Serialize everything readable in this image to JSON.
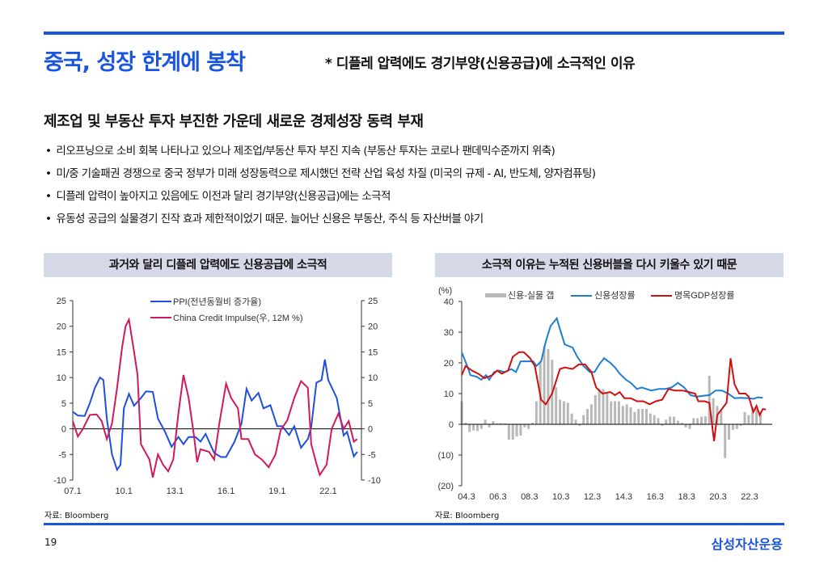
{
  "header": {
    "title": "중국, 성장 한계에 봉착",
    "subtitle": "* 디플레 압력에도 경기부양(신용공급)에 소극적인 이유"
  },
  "heading": "제조업 및 부동산 투자 부진한 가운데 새로운 경제성장 동력 부재",
  "bullets": [
    "리오프닝으로 소비 회복 나타나고 있으나 제조업/부동산 투자 부진 지속 (부동산 투자는 코로나 팬데믹수준까지 위축)",
    "미/중 기술패권 경쟁으로 중국 정부가 미래 성장동력으로 제시했던 전략 산업 육성 차질 (미국의 규제 - AI, 반도체, 양자컴퓨팅)",
    "디플레 압력이 높아지고 있음에도 이전과 달리 경기부양(신용공급)에는 소극적",
    "유동성 공급의 실물경기 진작 효과 제한적이었기 때문. 늘어난 신용은 부동산, 주식 등 자산버블 야기"
  ],
  "left_box": "과거와 달리 디플레 압력에도 신용공급에 소극적",
  "right_box": "소극적 이유는 누적된 신용버블을 다시 키울수 있기 때문",
  "source_left": "자료: Bloomberg",
  "source_right": "자료: Bloomberg",
  "page_number": "19",
  "logo": "삼성자산운용",
  "colors": {
    "accent": "#1a55e0",
    "ppi": "#1f4fe0",
    "impulse": "#d0195f",
    "credit": "#1d7fd0",
    "gdp": "#d01010",
    "gap": "#b8b8b8"
  },
  "chart_data": [
    {
      "type": "line",
      "title": "",
      "ylim": [
        -10,
        25
      ],
      "y2lim": [
        -10,
        25
      ],
      "yticks": [
        "25",
        "20",
        "15",
        "10",
        "5",
        "0",
        "-5",
        "-10"
      ],
      "xticks": [
        "07.1",
        "10.1",
        "13.1",
        "16.1",
        "19.1",
        "22.1"
      ],
      "series": [
        {
          "name": "PPI(전년동월비 증가율)",
          "x": [
            2007.0,
            2007.3,
            2007.7,
            2008.0,
            2008.3,
            2008.6,
            2008.8,
            2009.0,
            2009.3,
            2009.6,
            2009.8,
            2010.0,
            2010.3,
            2010.6,
            2011.0,
            2011.3,
            2011.7,
            2012.0,
            2012.4,
            2012.8,
            2013.2,
            2013.5,
            2013.8,
            2014.2,
            2014.5,
            2014.8,
            2015.3,
            2015.7,
            2016.0,
            2016.5,
            2016.9,
            2017.2,
            2017.5,
            2017.9,
            2018.2,
            2018.6,
            2019.0,
            2019.3,
            2019.7,
            2020.0,
            2020.4,
            2020.8,
            2021.0,
            2021.3,
            2021.6,
            2021.8,
            2022.0,
            2022.5,
            2022.9,
            2023.1,
            2023.5,
            2023.7
          ],
          "values": [
            3.3,
            2.6,
            2.5,
            5,
            8,
            10,
            9.5,
            2,
            -5,
            -8,
            -7,
            4,
            6.8,
            4.5,
            6,
            7.3,
            7.2,
            2,
            -0.5,
            -3.5,
            -1.6,
            -3,
            -1.6,
            -1.6,
            -2.5,
            -1,
            -4.7,
            -5.5,
            -5.5,
            -2.5,
            1,
            7.8,
            5.5,
            7,
            4,
            4.6,
            0.5,
            0.5,
            -1.2,
            0.5,
            -3.7,
            -2,
            0.3,
            9,
            9.5,
            13.5,
            9.5,
            6,
            -1.3,
            -0.6,
            -5.4,
            -4.5
          ]
        },
        {
          "name": "China Credit Impulse(우, 12M %)",
          "x": [
            2007.0,
            2007.3,
            2007.6,
            2008.0,
            2008.4,
            2008.7,
            2009.0,
            2009.3,
            2009.6,
            2009.9,
            2010.1,
            2010.3,
            2010.6,
            2010.8,
            2011.0,
            2011.5,
            2011.7,
            2012.0,
            2012.3,
            2012.6,
            2012.9,
            2013.2,
            2013.5,
            2013.8,
            2014.1,
            2014.3,
            2014.5,
            2015.0,
            2015.3,
            2015.6,
            2016.0,
            2016.3,
            2016.7,
            2016.9,
            2017.3,
            2017.7,
            2018.1,
            2018.5,
            2018.9,
            2019.2,
            2019.6,
            2020.0,
            2020.4,
            2020.8,
            2021.0,
            2021.3,
            2021.5,
            2021.9,
            2022.2,
            2022.6,
            2022.9,
            2023.2,
            2023.5,
            2023.7
          ],
          "values": [
            1.5,
            -1.5,
            0,
            2.7,
            2.8,
            1.5,
            -2,
            1,
            8,
            16,
            20,
            21.3,
            15,
            10.5,
            -3,
            -6,
            -9.5,
            -5,
            -7,
            -8.3,
            -6,
            3,
            10.5,
            6,
            -1,
            -6.5,
            -4,
            -4.5,
            -6,
            1,
            8.8,
            6,
            4,
            -2,
            -2,
            -5,
            -6,
            -7.5,
            -5,
            -0.3,
            1.7,
            6,
            9.3,
            8,
            -3,
            -6.8,
            -9,
            -7,
            0,
            3,
            0,
            1.5,
            -2.5,
            -2
          ]
        }
      ]
    },
    {
      "type": "bar+line",
      "ylabel": "(%)",
      "ylim": [
        -20,
        40
      ],
      "yticks": [
        "40",
        "30",
        "20",
        "10",
        "0",
        "(10)",
        "(20)"
      ],
      "xticks": [
        "04.3",
        "06.3",
        "08.3",
        "10.3",
        "12.3",
        "14.3",
        "16.3",
        "18.3",
        "20.3",
        "22.3"
      ],
      "bars": {
        "name": "신용-실물 갭",
        "x_start": 2004.25,
        "step": 0.25,
        "values": [
          7.5,
          0.5,
          -2.5,
          -2,
          -2.2,
          -1.5,
          1.5,
          -1,
          1,
          0.3,
          0.3,
          0.3,
          -5,
          -5,
          -4,
          -3.7,
          -1,
          -1.5,
          0.5,
          7.5,
          20.5,
          25.5,
          24.5,
          21,
          12,
          8,
          7.5,
          7,
          3.5,
          1.5,
          -0.5,
          3,
          5,
          6.5,
          9.5,
          11.5,
          11.5,
          10,
          7.5,
          7.5,
          7.5,
          6,
          6.5,
          5.5,
          4,
          5,
          5,
          5,
          3.5,
          3,
          2,
          -0.5,
          1.5,
          2.5,
          2.5,
          1.2,
          0.5,
          -1,
          -1.5,
          2,
          2,
          2.5,
          2.6,
          15.8,
          8.5,
          6,
          4.5,
          -11,
          -5,
          -1.8,
          -1.5,
          -0.5,
          4,
          3,
          5.5,
          5,
          4.2
        ]
      },
      "series": [
        {
          "name": "신용성장률",
          "x": [
            2004.25,
            2004.6,
            2004.8,
            2005.2,
            2005.5,
            2005.8,
            2006.0,
            2006.3,
            2006.6,
            2007.0,
            2007.4,
            2007.7,
            2008.0,
            2008.4,
            2008.8,
            2009.0,
            2009.3,
            2009.6,
            2009.9,
            2010.3,
            2010.5,
            2010.8,
            2011.3,
            2011.6,
            2012.0,
            2012.4,
            2012.7,
            2013.0,
            2013.3,
            2013.7,
            2014.0,
            2014.3,
            2014.7,
            2015.0,
            2015.4,
            2015.7,
            2016.0,
            2016.3,
            2016.8,
            2017.2,
            2017.6,
            2018.0,
            2018.4,
            2018.8,
            2019.2,
            2019.6,
            2020.0,
            2020.4,
            2020.8,
            2021.2,
            2021.6,
            2022.0,
            2022.5,
            2022.8,
            2023.1,
            2023.4
          ],
          "values": [
            23.5,
            19,
            16,
            15.5,
            14.5,
            16,
            14.5,
            17,
            17.5,
            17,
            18,
            17,
            20.5,
            20.5,
            20.5,
            19,
            20.5,
            27,
            32,
            34.5,
            31,
            26,
            25,
            22,
            19,
            17,
            17,
            19.5,
            21.5,
            20,
            18.5,
            16.5,
            14.5,
            13.5,
            11.5,
            12,
            11.5,
            11,
            11.5,
            11.5,
            12,
            13.5,
            12,
            9.5,
            9,
            9.3,
            9.5,
            11,
            11,
            10,
            8.5,
            8.6,
            8.5,
            8.3,
            8.8,
            8.6
          ]
        },
        {
          "name": "명목GDP성장률",
          "x": [
            2004.25,
            2004.5,
            2004.9,
            2005.3,
            2005.7,
            2006.2,
            2006.5,
            2006.8,
            2007.2,
            2007.5,
            2007.9,
            2008.2,
            2008.6,
            2008.9,
            2009.3,
            2009.6,
            2010.0,
            2010.5,
            2010.8,
            2011.3,
            2011.7,
            2012.1,
            2012.5,
            2012.8,
            2013.2,
            2013.7,
            2014.0,
            2014.3,
            2014.6,
            2015.0,
            2015.4,
            2015.8,
            2016.2,
            2016.6,
            2017.0,
            2017.4,
            2017.8,
            2018.3,
            2018.7,
            2019.1,
            2019.3,
            2019.7,
            2020.0,
            2020.3,
            2020.5,
            2020.8,
            2021.1,
            2021.35,
            2021.6,
            2021.9,
            2022.3,
            2022.5,
            2022.8,
            2023.0,
            2023.2,
            2023.4,
            2023.6
          ],
          "values": [
            16,
            19,
            17.5,
            16.5,
            15,
            16,
            17.5,
            16.5,
            17.5,
            22,
            23.5,
            23.5,
            21.5,
            19,
            8,
            6.5,
            10,
            18,
            18.5,
            18,
            19.5,
            19.5,
            17,
            12,
            10,
            10.5,
            9.5,
            10.5,
            8.5,
            8.5,
            7.5,
            7.5,
            6.5,
            7.5,
            8,
            11.5,
            11,
            11,
            10.5,
            10,
            7.5,
            7.5,
            7,
            -5.5,
            3,
            5,
            7,
            21.5,
            13,
            10,
            10,
            9,
            4,
            6,
            3,
            5,
            4.8
          ]
        }
      ]
    }
  ]
}
